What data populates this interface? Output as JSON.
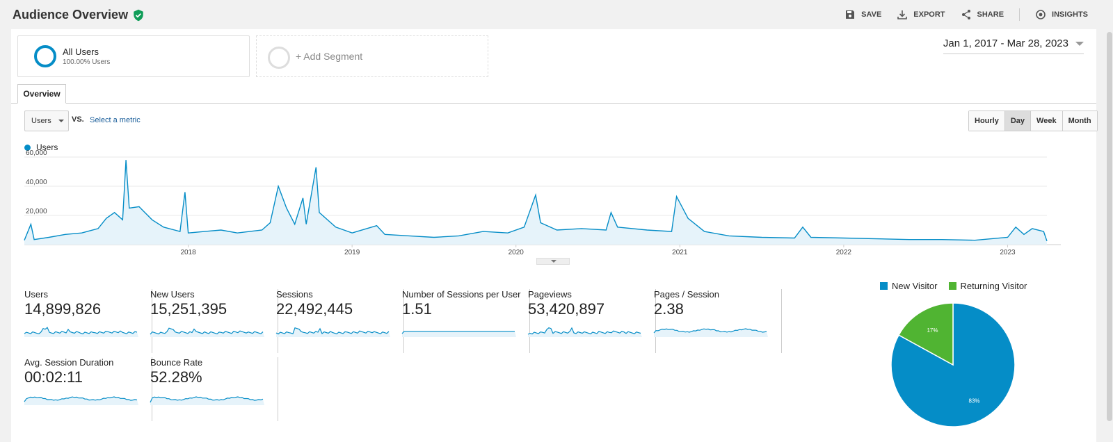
{
  "header": {
    "title": "Audience Overview",
    "actions": [
      "SAVE",
      "EXPORT",
      "SHARE",
      "INSIGHTS"
    ]
  },
  "segments": {
    "active": {
      "name": "All Users",
      "sub": "100.00% Users"
    },
    "add_label": "+ Add Segment"
  },
  "date_range": "Jan 1, 2017 - Mar 28, 2023",
  "tabs": {
    "overview": "Overview"
  },
  "controls": {
    "metric": "Users",
    "vs": "VS.",
    "select_metric": "Select a metric",
    "granularity": [
      "Hourly",
      "Day",
      "Week",
      "Month"
    ],
    "active_granularity": "Day"
  },
  "colors": {
    "line": "#058dc7",
    "fill": "#e6f3fa",
    "new_visitor": "#058dc7",
    "returning_visitor": "#50b432"
  },
  "chart_data": [
    {
      "type": "area",
      "series": [
        {
          "name": "Users",
          "points": [
            [
              2017.0,
              3000
            ],
            [
              2017.04,
              14000
            ],
            [
              2017.06,
              3500
            ],
            [
              2017.15,
              5000
            ],
            [
              2017.25,
              7000
            ],
            [
              2017.35,
              8000
            ],
            [
              2017.45,
              11000
            ],
            [
              2017.5,
              18000
            ],
            [
              2017.55,
              22000
            ],
            [
              2017.6,
              17000
            ],
            [
              2017.62,
              58000
            ],
            [
              2017.64,
              25000
            ],
            [
              2017.7,
              26000
            ],
            [
              2017.78,
              17000
            ],
            [
              2017.85,
              12000
            ],
            [
              2017.95,
              9000
            ],
            [
              2017.98,
              36000
            ],
            [
              2018.0,
              8000
            ],
            [
              2018.1,
              9000
            ],
            [
              2018.2,
              10000
            ],
            [
              2018.3,
              8000
            ],
            [
              2018.45,
              10000
            ],
            [
              2018.5,
              15000
            ],
            [
              2018.55,
              40000
            ],
            [
              2018.6,
              25000
            ],
            [
              2018.65,
              14000
            ],
            [
              2018.7,
              32000
            ],
            [
              2018.72,
              14000
            ],
            [
              2018.78,
              53000
            ],
            [
              2018.8,
              22000
            ],
            [
              2018.9,
              12000
            ],
            [
              2019.0,
              8000
            ],
            [
              2019.15,
              13000
            ],
            [
              2019.2,
              7000
            ],
            [
              2019.35,
              6000
            ],
            [
              2019.5,
              5000
            ],
            [
              2019.65,
              6000
            ],
            [
              2019.8,
              9000
            ],
            [
              2019.95,
              8000
            ],
            [
              2020.05,
              12000
            ],
            [
              2020.12,
              34000
            ],
            [
              2020.15,
              15000
            ],
            [
              2020.25,
              10000
            ],
            [
              2020.4,
              11000
            ],
            [
              2020.55,
              10000
            ],
            [
              2020.58,
              22000
            ],
            [
              2020.62,
              12000
            ],
            [
              2020.8,
              10000
            ],
            [
              2020.95,
              9000
            ],
            [
              2020.98,
              33000
            ],
            [
              2021.05,
              18000
            ],
            [
              2021.15,
              9000
            ],
            [
              2021.3,
              6000
            ],
            [
              2021.5,
              5000
            ],
            [
              2021.7,
              4500
            ],
            [
              2021.75,
              12000
            ],
            [
              2021.8,
              5000
            ],
            [
              2022.0,
              4500
            ],
            [
              2022.2,
              4000
            ],
            [
              2022.4,
              3500
            ],
            [
              2022.6,
              3500
            ],
            [
              2022.8,
              3000
            ],
            [
              2023.0,
              5000
            ],
            [
              2023.05,
              12000
            ],
            [
              2023.1,
              7000
            ],
            [
              2023.15,
              11000
            ],
            [
              2023.22,
              9000
            ],
            [
              2023.24,
              2500
            ]
          ]
        }
      ],
      "x_ticks": [
        "2018",
        "2019",
        "2020",
        "2021",
        "2022",
        "2023"
      ],
      "y_ticks": [
        "20,000",
        "40,000",
        "60,000"
      ],
      "ylim": [
        0,
        60000
      ],
      "xlim": [
        2017.0,
        2023.24
      ]
    },
    {
      "type": "pie",
      "slices": [
        {
          "name": "New Visitor",
          "value": 83,
          "label": "83%"
        },
        {
          "name": "Returning Visitor",
          "value": 17,
          "label": "17%"
        }
      ]
    }
  ],
  "metrics": [
    {
      "name": "Users",
      "value": "14,899,826"
    },
    {
      "name": "New Users",
      "value": "15,251,395"
    },
    {
      "name": "Sessions",
      "value": "22,492,445"
    },
    {
      "name": "Number of Sessions per User",
      "value": "1.51"
    },
    {
      "name": "Pageviews",
      "value": "53,420,897"
    },
    {
      "name": "Pages / Session",
      "value": "2.38"
    },
    {
      "name": "Avg. Session Duration",
      "value": "00:02:11"
    },
    {
      "name": "Bounce Rate",
      "value": "52.28%"
    }
  ]
}
